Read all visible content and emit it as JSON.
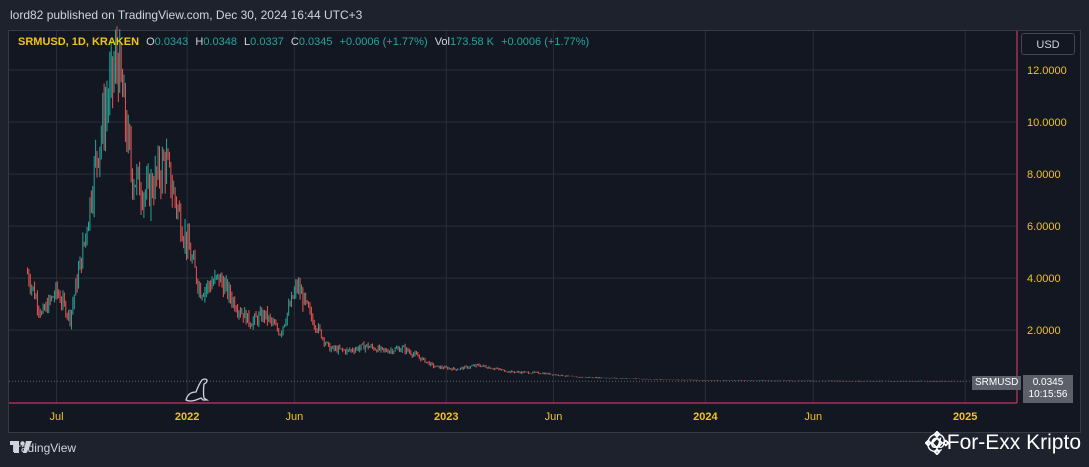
{
  "header": {
    "published": "lord82 published on TradingView.com, Dec 30, 2024 16:44 UTC+3"
  },
  "legend": {
    "symbol": "SRMUSD, 1D, KRAKEN",
    "open_label": "O",
    "open": "0.0343",
    "high_label": "H",
    "high": "0.0348",
    "low_label": "L",
    "low": "0.0337",
    "close_label": "C",
    "close": "0.0345",
    "change": "+0.0006 (+1.77%)",
    "vol_label": "Vol",
    "vol": "173.58 K",
    "vol_change": "+0.0006 (+1.77%)"
  },
  "currency_button": "USD",
  "price_badge": {
    "symbol": "SRMUSD",
    "price": "0.0345",
    "countdown": "10:15:56"
  },
  "footer": {
    "brand": "TradingView"
  },
  "watermark": {
    "text": "@For-Exx Kripto"
  },
  "colors": {
    "up": "#26a69a",
    "down": "#ef5350",
    "accent": "#f0c419",
    "crosshair": "#f23b6e"
  },
  "chart_data": {
    "type": "candlestick",
    "title": "SRMUSD, 1D, KRAKEN",
    "ylabel": "USD",
    "ylim": [
      -0.8,
      13.5
    ],
    "y_ticks": [
      2,
      4,
      6,
      8,
      10,
      12
    ],
    "y_tick_labels": [
      "2.0000",
      "4.0000",
      "6.0000",
      "8.0000",
      "10.0000",
      "12.0000"
    ],
    "x_ticks": [
      "Jul",
      "2022",
      "Jun",
      "2023",
      "Jun",
      "2024",
      "Jun",
      "2025"
    ],
    "x": [
      "2021-05-21",
      "2021-06-10",
      "2021-07-01",
      "2021-07-20",
      "2021-08-10",
      "2021-08-25",
      "2021-09-08",
      "2021-09-25",
      "2021-10-15",
      "2021-11-05",
      "2021-12-01",
      "2021-12-25",
      "2022-01-20",
      "2022-02-15",
      "2022-03-10",
      "2022-03-31",
      "2022-04-20",
      "2022-05-12",
      "2022-06-05",
      "2022-06-25",
      "2022-07-20",
      "2022-08-15",
      "2022-09-10",
      "2022-10-05",
      "2022-11-01",
      "2022-11-15",
      "2022-12-15",
      "2023-01-15",
      "2023-02-15",
      "2023-04-01",
      "2023-05-15",
      "2023-07-01",
      "2023-09-01",
      "2023-11-01",
      "2024-01-01",
      "2024-03-15",
      "2024-06-01",
      "2024-09-01",
      "2024-12-30"
    ],
    "values": [
      4.2,
      2.6,
      3.5,
      2.5,
      5.5,
      8.5,
      10.5,
      12.5,
      8.0,
      7.2,
      8.5,
      6.0,
      3.5,
      4.0,
      3.0,
      2.3,
      2.6,
      1.9,
      3.7,
      2.5,
      1.3,
      1.2,
      1.4,
      1.2,
      1.3,
      1.1,
      0.6,
      0.5,
      0.65,
      0.4,
      0.35,
      0.2,
      0.15,
      0.1,
      0.07,
      0.06,
      0.05,
      0.04,
      0.0345
    ]
  }
}
